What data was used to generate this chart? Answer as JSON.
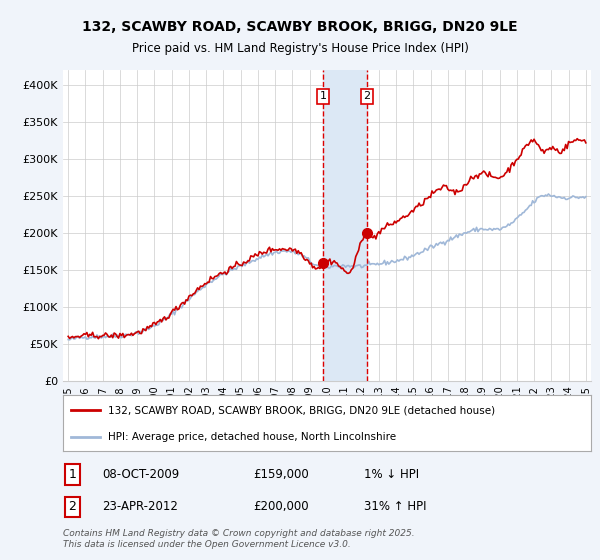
{
  "title": "132, SCAWBY ROAD, SCAWBY BROOK, BRIGG, DN20 9LE",
  "subtitle": "Price paid vs. HM Land Registry's House Price Index (HPI)",
  "legend_line1": "132, SCAWBY ROAD, SCAWBY BROOK, BRIGG, DN20 9LE (detached house)",
  "legend_line2": "HPI: Average price, detached house, North Lincolnshire",
  "footer": "Contains HM Land Registry data © Crown copyright and database right 2025.\nThis data is licensed under the Open Government Licence v3.0.",
  "transaction1_date": "08-OCT-2009",
  "transaction1_price": "£159,000",
  "transaction1_change": "1% ↓ HPI",
  "transaction2_date": "23-APR-2012",
  "transaction2_price": "£200,000",
  "transaction2_change": "31% ↑ HPI",
  "hpi_color": "#a0b8d8",
  "price_color": "#cc0000",
  "marker_color": "#cc0000",
  "shading_color": "#dce8f5",
  "vline_color": "#dd0000",
  "background_color": "#f0f4fa",
  "plot_background": "#ffffff",
  "grid_color": "#cccccc",
  "ylim": [
    0,
    420000
  ],
  "yticks": [
    0,
    50000,
    100000,
    150000,
    200000,
    250000,
    300000,
    350000,
    400000
  ],
  "ytick_labels": [
    "£0",
    "£50K",
    "£100K",
    "£150K",
    "£200K",
    "£250K",
    "£300K",
    "£350K",
    "£400K"
  ],
  "year_start": 1995,
  "year_end": 2025,
  "transaction1_year": 2009.77,
  "transaction2_year": 2012.31,
  "transaction1_value": 159000,
  "transaction2_value": 200000,
  "hpi_base_points": [
    [
      1995.0,
      55000
    ],
    [
      1997.0,
      60000
    ],
    [
      1999.0,
      65000
    ],
    [
      2001.0,
      90000
    ],
    [
      2003.0,
      130000
    ],
    [
      2005.0,
      155000
    ],
    [
      2007.5,
      175000
    ],
    [
      2008.5,
      170000
    ],
    [
      2009.5,
      155000
    ],
    [
      2010.5,
      155000
    ],
    [
      2012.0,
      155000
    ],
    [
      2013.0,
      158000
    ],
    [
      2014.5,
      165000
    ],
    [
      2016.0,
      180000
    ],
    [
      2017.5,
      195000
    ],
    [
      2019.0,
      205000
    ],
    [
      2020.0,
      205000
    ],
    [
      2021.5,
      230000
    ],
    [
      2022.5,
      250000
    ],
    [
      2023.5,
      248000
    ],
    [
      2024.5,
      248000
    ],
    [
      2025.0,
      248000
    ]
  ],
  "price_base_points": [
    [
      1995.0,
      57000
    ],
    [
      1997.0,
      61000
    ],
    [
      1999.0,
      65000
    ],
    [
      2001.0,
      92000
    ],
    [
      2003.0,
      133000
    ],
    [
      2005.0,
      158000
    ],
    [
      2007.0,
      178000
    ],
    [
      2007.5,
      178000
    ],
    [
      2008.5,
      172000
    ],
    [
      2009.5,
      153000
    ],
    [
      2010.0,
      160000
    ],
    [
      2010.5,
      160000
    ],
    [
      2011.5,
      153000
    ],
    [
      2012.3,
      200000
    ],
    [
      2012.5,
      195000
    ],
    [
      2013.0,
      200000
    ],
    [
      2014.0,
      215000
    ],
    [
      2015.0,
      230000
    ],
    [
      2016.0,
      250000
    ],
    [
      2017.0,
      260000
    ],
    [
      2017.5,
      255000
    ],
    [
      2018.0,
      265000
    ],
    [
      2019.0,
      280000
    ],
    [
      2020.0,
      275000
    ],
    [
      2021.0,
      300000
    ],
    [
      2021.5,
      315000
    ],
    [
      2022.0,
      325000
    ],
    [
      2022.5,
      310000
    ],
    [
      2023.0,
      315000
    ],
    [
      2023.5,
      310000
    ],
    [
      2024.0,
      320000
    ],
    [
      2024.5,
      325000
    ],
    [
      2025.0,
      325000
    ]
  ]
}
